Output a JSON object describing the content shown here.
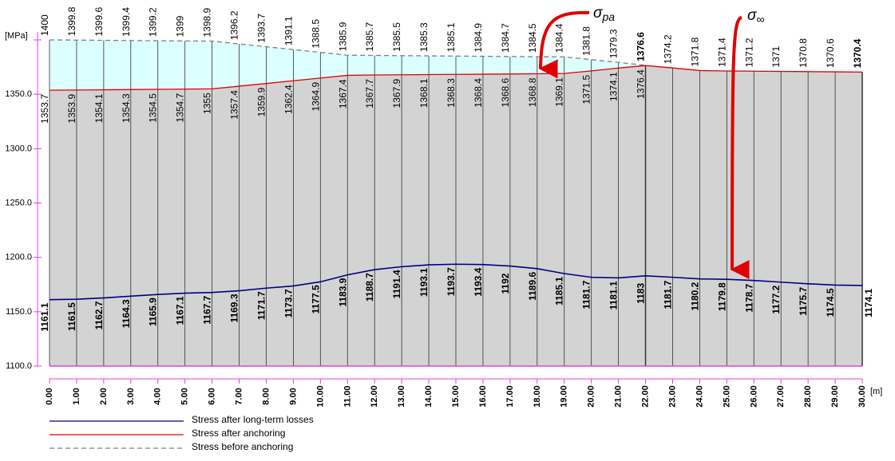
{
  "chart_data": {
    "type": "line",
    "y_label": "[MPa]",
    "x_label": "[m]",
    "x": [
      0,
      1,
      2,
      3,
      4,
      5,
      6,
      7,
      8,
      9,
      10,
      11,
      12,
      13,
      14,
      15,
      16,
      17,
      18,
      19,
      20,
      21,
      22,
      23,
      24,
      25,
      26,
      27,
      28,
      29,
      30
    ],
    "xlim": [
      0,
      30
    ],
    "ylim": [
      1100,
      1400
    ],
    "yticks": [
      {
        "value": 1100,
        "label": "1100.0"
      },
      {
        "value": 1150,
        "label": "1150.0"
      },
      {
        "value": 1200,
        "label": "1200.0"
      },
      {
        "value": 1250,
        "label": "1250.0"
      },
      {
        "value": 1300,
        "label": "1300.0"
      },
      {
        "value": 1350,
        "label": "1350.0"
      },
      {
        "value": 1400,
        "label": "1400.0"
      }
    ],
    "xticks": [
      {
        "value": 0,
        "label": "0.00"
      },
      {
        "value": 1,
        "label": "1.00"
      },
      {
        "value": 2,
        "label": "2.00"
      },
      {
        "value": 3,
        "label": "3.00"
      },
      {
        "value": 4,
        "label": "4.00"
      },
      {
        "value": 5,
        "label": "5.00"
      },
      {
        "value": 6,
        "label": "6.00"
      },
      {
        "value": 7,
        "label": "7.00"
      },
      {
        "value": 8,
        "label": "8.00"
      },
      {
        "value": 9,
        "label": "9.00"
      },
      {
        "value": 10,
        "label": "10.00"
      },
      {
        "value": 11,
        "label": "11.00"
      },
      {
        "value": 12,
        "label": "12.00"
      },
      {
        "value": 13,
        "label": "13.00"
      },
      {
        "value": 14,
        "label": "14.00"
      },
      {
        "value": 15,
        "label": "15.00"
      },
      {
        "value": 16,
        "label": "16.00"
      },
      {
        "value": 17,
        "label": "17.00"
      },
      {
        "value": 18,
        "label": "18.00"
      },
      {
        "value": 19,
        "label": "19.00"
      },
      {
        "value": 20,
        "label": "20.00"
      },
      {
        "value": 21,
        "label": "21.00"
      },
      {
        "value": 22,
        "label": "22.00"
      },
      {
        "value": 23,
        "label": "23.00"
      },
      {
        "value": 24,
        "label": "24.00"
      },
      {
        "value": 25,
        "label": "25.00"
      },
      {
        "value": 26,
        "label": "26.00"
      },
      {
        "value": 27,
        "label": "27.00"
      },
      {
        "value": 28,
        "label": "28.00"
      },
      {
        "value": 29,
        "label": "29.00"
      },
      {
        "value": 30,
        "label": "30.00"
      }
    ],
    "highlight_x": [
      22,
      30
    ],
    "series": [
      {
        "name": "Stress after long-term losses",
        "color": "#00007f",
        "values": [
          1161.1,
          1161.5,
          1162.7,
          1164.3,
          1165.9,
          1167.1,
          1167.7,
          1169.3,
          1171.7,
          1173.7,
          1177.5,
          1183.9,
          1188.7,
          1191.4,
          1193.1,
          1193.7,
          1193.4,
          1192.0,
          1189.6,
          1185.1,
          1181.7,
          1181.1,
          1183.0,
          1181.7,
          1180.2,
          1179.8,
          1178.7,
          1177.2,
          1175.7,
          1174.5,
          1174.1
        ]
      },
      {
        "name": "Stress after anchoring",
        "color": "#e00000",
        "values": [
          1353.7,
          1353.9,
          1354.1,
          1354.3,
          1354.5,
          1354.7,
          1355.0,
          1357.4,
          1359.9,
          1362.4,
          1364.9,
          1367.4,
          1367.7,
          1367.9,
          1368.1,
          1368.3,
          1368.4,
          1368.6,
          1368.8,
          1369.1,
          1371.5,
          1374.1,
          1376.4,
          1374.2,
          1371.8,
          1371.4,
          1371.2,
          1371.0,
          1370.8,
          1370.6,
          1370.4
        ]
      },
      {
        "name": "Stress before anchoring",
        "color": "#808080",
        "values": [
          1400.0,
          1399.8,
          1399.6,
          1399.4,
          1399.2,
          1399.0,
          1398.9,
          1396.2,
          1393.7,
          1391.1,
          1388.5,
          1385.9,
          1385.7,
          1385.5,
          1385.3,
          1385.1,
          1384.9,
          1384.7,
          1384.5,
          1384.4,
          1381.8,
          1379.3,
          1376.6,
          null,
          null,
          null,
          null,
          null,
          null,
          null,
          null
        ]
      }
    ],
    "annotations": [
      {
        "symbol": "σ",
        "subscript": "pa"
      },
      {
        "symbol": "σ",
        "subscript": "∞"
      }
    ]
  }
}
